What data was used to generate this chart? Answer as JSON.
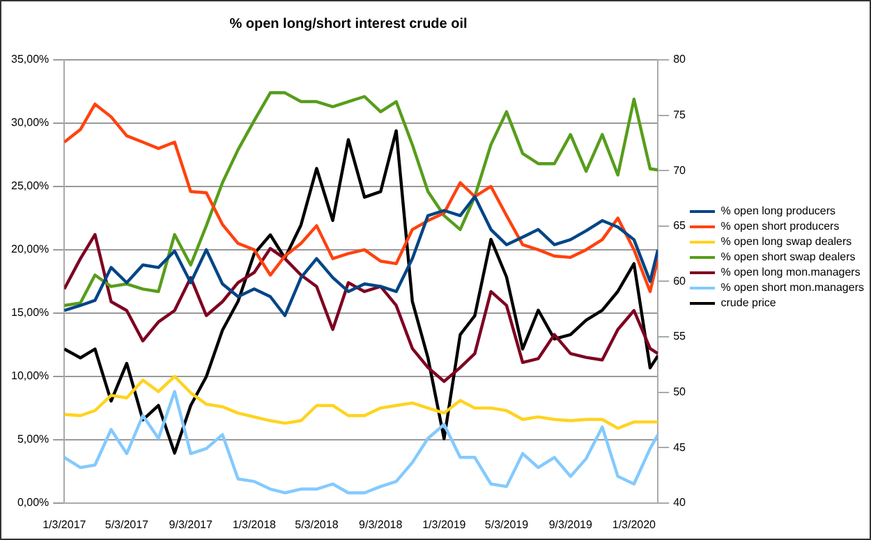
{
  "chart_data": {
    "type": "line",
    "title": "% open long/short interest crude oil",
    "x": [
      "2017-01-03",
      "2017-02-03",
      "2017-03-03",
      "2017-04-03",
      "2017-05-03",
      "2017-06-03",
      "2017-07-03",
      "2017-08-03",
      "2017-09-03",
      "2017-10-03",
      "2017-11-03",
      "2017-12-03",
      "2018-01-03",
      "2018-02-03",
      "2018-03-03",
      "2018-04-03",
      "2018-05-03",
      "2018-06-03",
      "2018-07-03",
      "2018-08-03",
      "2018-09-03",
      "2018-10-03",
      "2018-11-03",
      "2018-12-03",
      "2019-01-03",
      "2019-02-03",
      "2019-03-03",
      "2019-04-03",
      "2019-05-03",
      "2019-06-03",
      "2019-07-03",
      "2019-08-03",
      "2019-09-03",
      "2019-10-03",
      "2019-11-03",
      "2019-12-03",
      "2020-01-03",
      "2020-02-03",
      "2020-02-18"
    ],
    "xlim": [
      "2017-01-03",
      "2020-02-18"
    ],
    "xticks": [
      {
        "value": "2017-01-03",
        "label": "1/3/2017"
      },
      {
        "value": "2017-05-03",
        "label": "5/3/2017"
      },
      {
        "value": "2017-09-03",
        "label": "9/3/2017"
      },
      {
        "value": "2018-01-03",
        "label": "1/3/2018"
      },
      {
        "value": "2018-05-03",
        "label": "5/3/2018"
      },
      {
        "value": "2018-09-03",
        "label": "9/3/2018"
      },
      {
        "value": "2019-01-03",
        "label": "1/3/2019"
      },
      {
        "value": "2019-05-03",
        "label": "5/3/2019"
      },
      {
        "value": "2019-09-03",
        "label": "9/3/2019"
      },
      {
        "value": "2020-01-03",
        "label": "1/3/2020"
      }
    ],
    "ylim": [
      0,
      35
    ],
    "yticks": [
      {
        "value": 0,
        "label": "0,00%"
      },
      {
        "value": 5,
        "label": "5,00%"
      },
      {
        "value": 10,
        "label": "10,00%"
      },
      {
        "value": 15,
        "label": "15,00%"
      },
      {
        "value": 20,
        "label": "20,00%"
      },
      {
        "value": 25,
        "label": "25,00%"
      },
      {
        "value": 30,
        "label": "30,00%"
      },
      {
        "value": 35,
        "label": "35,00%"
      }
    ],
    "y2lim": [
      40,
      80
    ],
    "y2ticks": [
      40,
      45,
      50,
      55,
      60,
      65,
      70,
      75,
      80
    ],
    "grid": "y",
    "legend": "right",
    "marker": "none",
    "line_style": "solid",
    "series": [
      {
        "name": "% open long producers",
        "color": "#004586",
        "values": [
          15.2,
          15.6,
          16,
          18.6,
          17.4,
          18.8,
          18.6,
          19.9,
          17.4,
          20,
          17.3,
          16.3,
          16.9,
          16.3,
          14.8,
          17.8,
          19.3,
          17.8,
          16.7,
          17.3,
          17.1,
          16.7,
          19.3,
          22.7,
          23.1,
          22.7,
          24.2,
          21.6,
          20.4,
          21,
          21.6,
          20.4,
          20.8,
          21.5,
          22.3,
          21.8,
          20.8,
          17.5,
          20
        ]
      },
      {
        "name": "% open short producers",
        "color": "#ff420e",
        "values": [
          28.5,
          29.5,
          31.5,
          30.5,
          29,
          28.5,
          28,
          28.5,
          24.6,
          24.5,
          22,
          20.5,
          20,
          18,
          19.5,
          20.5,
          21.9,
          19.3,
          19.7,
          20,
          19.1,
          18.9,
          21.6,
          22.3,
          22.9,
          25.3,
          24.2,
          25,
          22.7,
          20.4,
          20,
          19.5,
          19.4,
          20,
          20.8,
          22.5,
          20,
          16.7,
          19.3
        ]
      },
      {
        "name": "% open long swap dealers",
        "color": "#ffd320",
        "values": [
          7,
          6.9,
          7.3,
          8.5,
          8.3,
          9.7,
          8.8,
          10,
          8.7,
          7.8,
          7.6,
          7.1,
          6.8,
          6.5,
          6.3,
          6.5,
          7.7,
          7.7,
          6.9,
          6.9,
          7.5,
          7.7,
          7.9,
          7.5,
          7.1,
          8.1,
          7.5,
          7.5,
          7.3,
          6.6,
          6.8,
          6.6,
          6.5,
          6.6,
          6.6,
          5.9,
          6.4,
          6.4,
          6.4
        ]
      },
      {
        "name": "% open short swap dealers",
        "color": "#579d1c",
        "values": [
          15.6,
          15.8,
          18,
          17.1,
          17.3,
          16.9,
          16.7,
          21.2,
          18.8,
          21.9,
          25.3,
          27.9,
          30.2,
          32.4,
          32.4,
          31.7,
          31.7,
          31.3,
          31.7,
          32.1,
          30.9,
          31.7,
          28.3,
          24.6,
          22.7,
          21.6,
          24.2,
          28.3,
          30.9,
          27.6,
          26.8,
          26.8,
          29.1,
          26.2,
          29.1,
          25.9,
          31.9,
          26.4,
          26.3
        ]
      },
      {
        "name": "% open long mon.managers",
        "color": "#7e0021",
        "values": [
          16.9,
          19.3,
          21.2,
          15.9,
          15.2,
          12.8,
          14.3,
          15.2,
          17.8,
          14.8,
          15.9,
          17.4,
          18.2,
          20.1,
          19.3,
          18,
          17.1,
          13.7,
          17.4,
          16.7,
          17.1,
          15.6,
          12.2,
          10.7,
          9.6,
          10.7,
          11.8,
          16.7,
          15.6,
          11.1,
          11.4,
          13.3,
          11.8,
          11.5,
          11.3,
          13.7,
          15.2,
          12.2,
          11.8
        ]
      },
      {
        "name": "% open short mon.managers",
        "color": "#83caff",
        "values": [
          3.6,
          2.8,
          3,
          5.8,
          3.9,
          6.9,
          5.1,
          8.8,
          3.9,
          4.3,
          5.4,
          1.9,
          1.7,
          1.1,
          0.8,
          1.1,
          1.1,
          1.5,
          0.8,
          0.8,
          1.3,
          1.7,
          3.2,
          5.1,
          6.2,
          3.6,
          3.6,
          1.5,
          1.3,
          3.9,
          2.8,
          3.6,
          2.1,
          3.5,
          6,
          2.1,
          1.5,
          4.3,
          5.4
        ]
      },
      {
        "name": "crude price",
        "color": "#000000",
        "axis": "y2",
        "values": [
          53.9,
          53.1,
          53.9,
          49.2,
          52.6,
          47.5,
          48.8,
          44.5,
          48.8,
          51.4,
          55.6,
          58.2,
          62.5,
          64.2,
          62.1,
          65.1,
          70.2,
          65.5,
          72.8,
          67.6,
          68.1,
          73.6,
          58.2,
          53.1,
          45.8,
          55.2,
          56.9,
          63.8,
          60.4,
          53.9,
          57.4,
          54.8,
          55.2,
          56.5,
          57.4,
          59.1,
          61.6,
          52.2,
          53.3
        ]
      }
    ]
  }
}
